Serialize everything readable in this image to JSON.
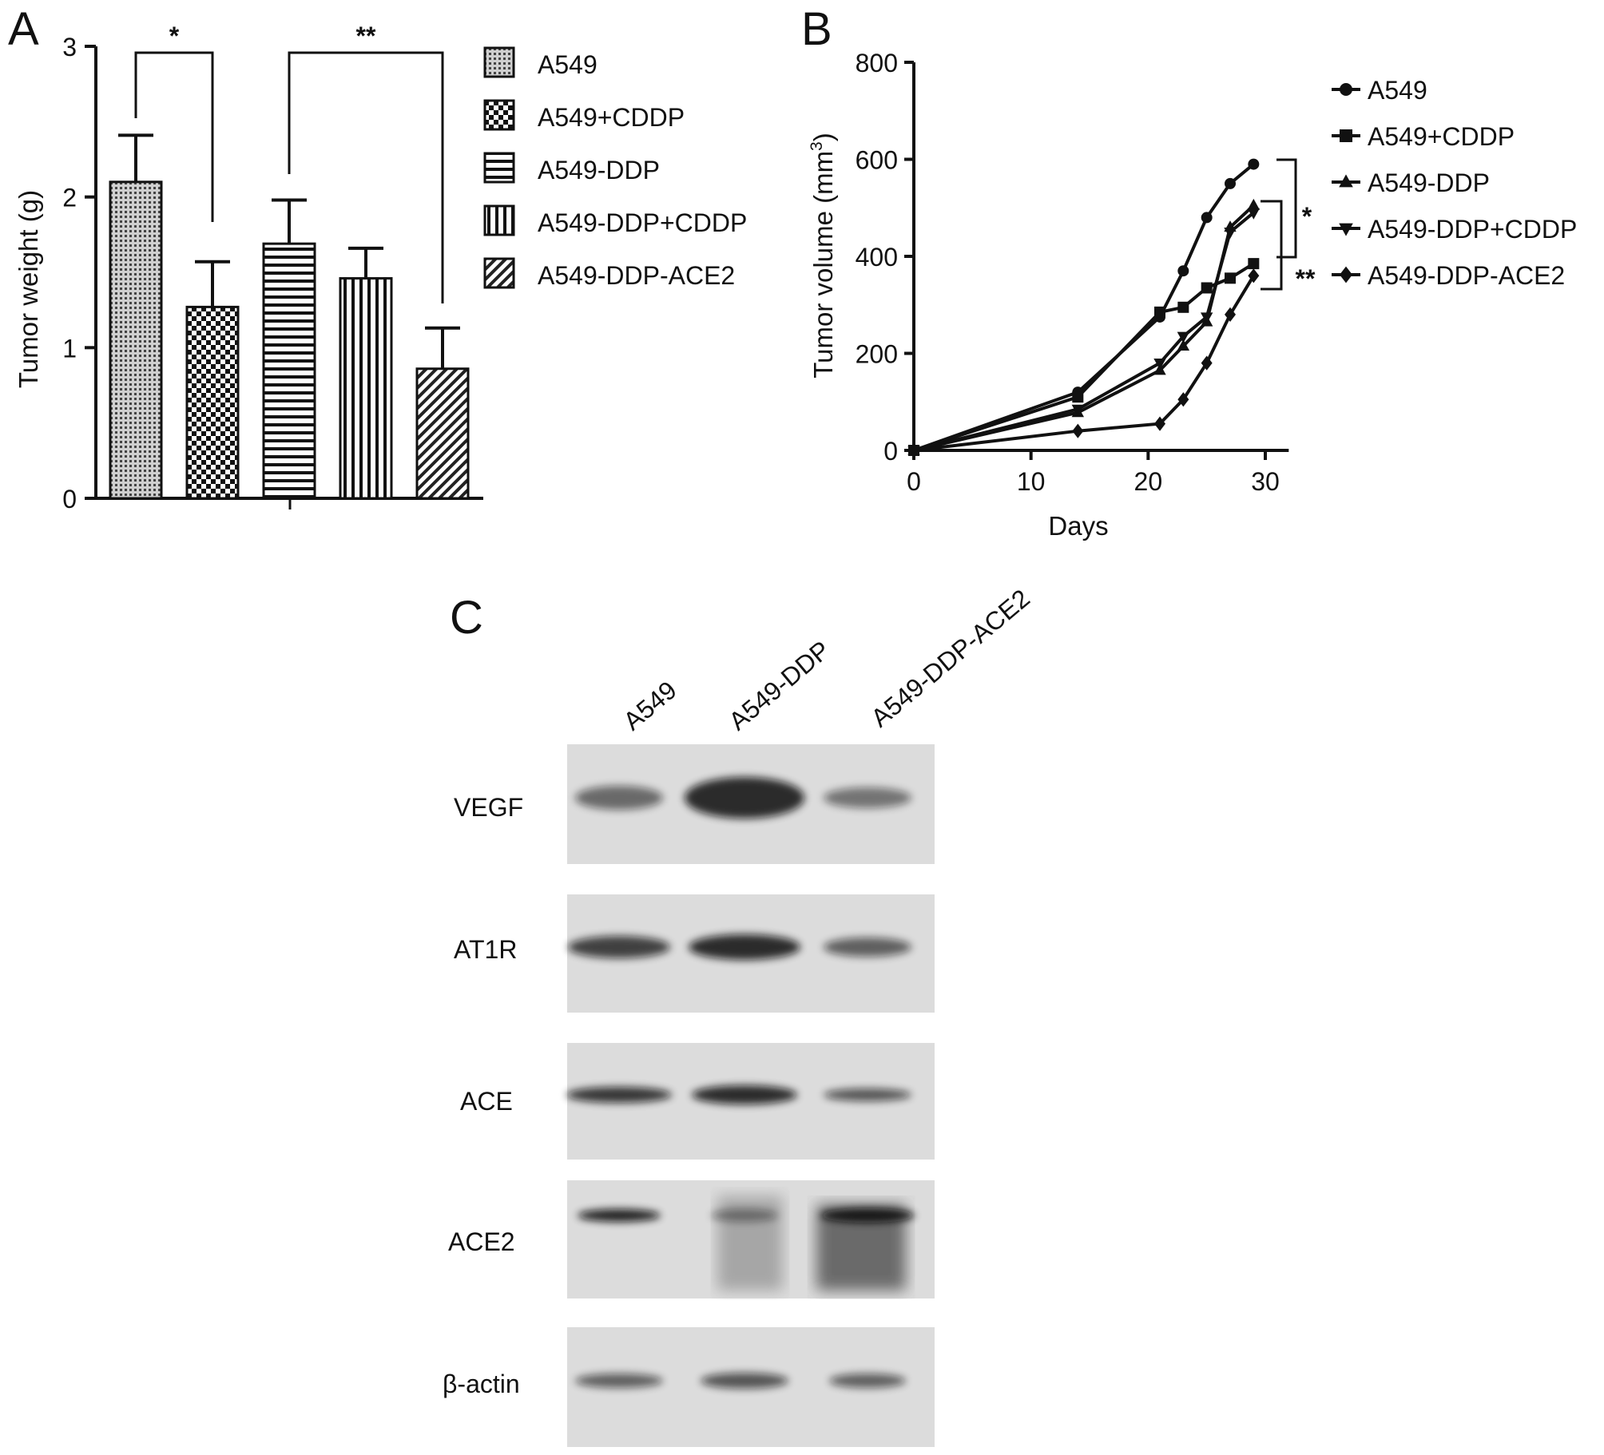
{
  "panels": {
    "a": {
      "letter": "A"
    },
    "b": {
      "letter": "B"
    },
    "c": {
      "letter": "C"
    }
  },
  "chart_data": [
    {
      "panel": "A",
      "type": "bar",
      "ylabel": "Tumor weight (g)",
      "xlabel": "",
      "ylim": [
        0,
        3
      ],
      "yticks": [
        "0",
        "1",
        "2",
        "3"
      ],
      "categories": [
        "A549",
        "A549+CDDP",
        "A549-DDP",
        "A549-DDP+CDDP",
        "A549-DDP-ACE2"
      ],
      "values": [
        2.1,
        1.27,
        1.69,
        1.46,
        0.86
      ],
      "errors": [
        0.31,
        0.3,
        0.29,
        0.2,
        0.27
      ],
      "patterns": [
        "dots",
        "checker",
        "hlines",
        "vlines",
        "diagonal"
      ],
      "legend": {
        "position": "right",
        "entries": [
          "A549",
          "A549+CDDP",
          "A549-DDP",
          "A549-DDP+CDDP",
          "A549-DDP-ACE2"
        ]
      },
      "significance": [
        {
          "from": 0,
          "to": 1,
          "label": "*"
        },
        {
          "from": 2,
          "to": 4,
          "label": "**"
        }
      ]
    },
    {
      "panel": "B",
      "type": "line",
      "xlabel": "Days",
      "ylabel": "Tumor volume (mm",
      "ylabel_sup": "3",
      "ylabel_close": ")",
      "xlim": [
        0,
        32
      ],
      "ylim": [
        0,
        800
      ],
      "xticks": [
        "0",
        "10",
        "20",
        "30"
      ],
      "yticks": [
        "0",
        "200",
        "400",
        "600",
        "800"
      ],
      "x": [
        0,
        14,
        21,
        23,
        25,
        27,
        29
      ],
      "series": [
        {
          "name": "A549",
          "marker": "circle",
          "values": [
            0,
            120,
            275,
            370,
            480,
            550,
            590
          ]
        },
        {
          "name": "A549+CDDP",
          "marker": "square",
          "values": [
            0,
            110,
            285,
            295,
            335,
            355,
            385
          ]
        },
        {
          "name": "A549-DDP",
          "marker": "triangle-up",
          "values": [
            0,
            78,
            165,
            215,
            265,
            460,
            505
          ]
        },
        {
          "name": "A549-DDP+CDDP",
          "marker": "triangle-down",
          "values": [
            0,
            85,
            180,
            235,
            275,
            450,
            490
          ]
        },
        {
          "name": "A549-DDP-ACE2",
          "marker": "diamond",
          "values": [
            0,
            40,
            55,
            105,
            180,
            280,
            360
          ]
        }
      ],
      "legend": {
        "position": "right"
      },
      "significance": [
        "*",
        "**"
      ]
    }
  ],
  "western_blot": {
    "lanes": [
      "A549",
      "A549-DDP",
      "A549-DDP-ACE2"
    ],
    "rows": [
      {
        "label": "VEGF"
      },
      {
        "label": "AT1R"
      },
      {
        "label": "ACE"
      },
      {
        "label": "ACE2"
      },
      {
        "label": "β-actin"
      }
    ]
  }
}
